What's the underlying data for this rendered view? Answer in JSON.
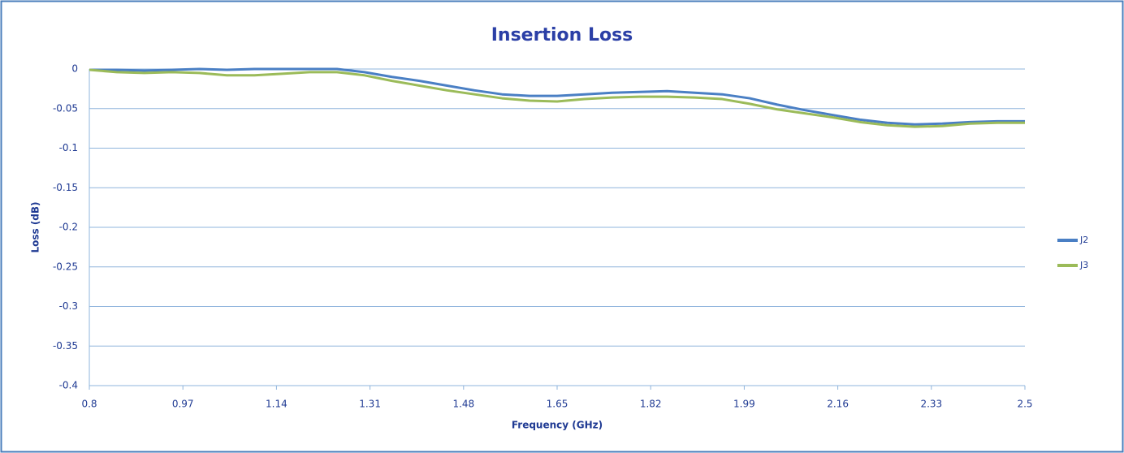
{
  "chart_data": {
    "type": "line",
    "title": "Insertion Loss",
    "xlabel": "Frequency (GHz)",
    "ylabel": "Loss (dB)",
    "x": [
      0.8,
      0.85,
      0.9,
      0.95,
      1.0,
      1.05,
      1.1,
      1.15,
      1.2,
      1.25,
      1.3,
      1.35,
      1.4,
      1.45,
      1.5,
      1.55,
      1.6,
      1.65,
      1.7,
      1.75,
      1.8,
      1.85,
      1.9,
      1.95,
      2.0,
      2.05,
      2.1,
      2.15,
      2.2,
      2.25,
      2.3,
      2.35,
      2.4,
      2.45,
      2.5
    ],
    "series": [
      {
        "name": "J2",
        "color": "#4a7fc4",
        "values": [
          -0.001,
          -0.001,
          -0.002,
          -0.001,
          0.0,
          -0.001,
          0.0,
          0.0,
          0.0,
          0.0,
          -0.004,
          -0.01,
          -0.015,
          -0.021,
          -0.027,
          -0.032,
          -0.034,
          -0.034,
          -0.032,
          -0.03,
          -0.029,
          -0.028,
          -0.03,
          -0.032,
          -0.037,
          -0.045,
          -0.052,
          -0.058,
          -0.064,
          -0.068,
          -0.07,
          -0.069,
          -0.067,
          -0.066,
          -0.066
        ]
      },
      {
        "name": "J3",
        "color": "#9bbb59",
        "values": [
          -0.001,
          -0.004,
          -0.005,
          -0.004,
          -0.005,
          -0.008,
          -0.008,
          -0.006,
          -0.004,
          -0.004,
          -0.008,
          -0.015,
          -0.021,
          -0.027,
          -0.032,
          -0.037,
          -0.04,
          -0.041,
          -0.038,
          -0.036,
          -0.035,
          -0.035,
          -0.036,
          -0.038,
          -0.044,
          -0.051,
          -0.056,
          -0.061,
          -0.067,
          -0.071,
          -0.073,
          -0.072,
          -0.069,
          -0.068,
          -0.068
        ]
      }
    ],
    "xlim": [
      0.8,
      2.5
    ],
    "xticks": [
      0.8,
      0.97,
      1.14,
      1.31,
      1.48,
      1.65,
      1.82,
      1.99,
      2.16,
      2.33,
      2.5
    ],
    "ylim": [
      -0.4,
      0
    ],
    "yticks": [
      0,
      -0.05,
      -0.1,
      -0.15,
      -0.2,
      -0.25,
      -0.3,
      -0.35,
      -0.4
    ],
    "grid": true,
    "legend": "right"
  }
}
